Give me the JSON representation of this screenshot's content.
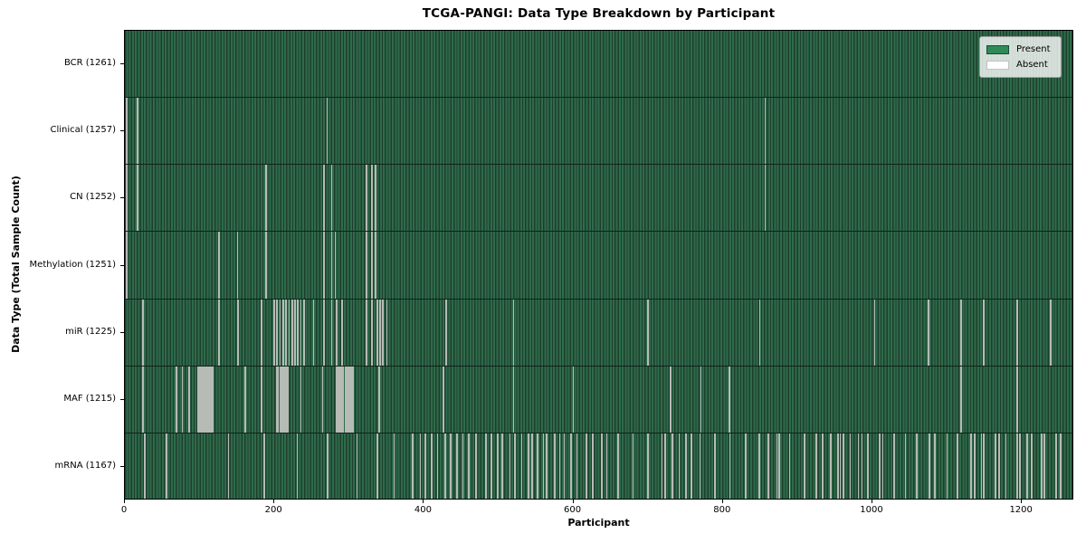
{
  "chart_data": {
    "type": "heatmap",
    "title": "TCGA-PANGI: Data Type Breakdown by Participant",
    "xlabel": "Participant",
    "ylabel": "Data Type (Total Sample Count)",
    "x_ticks": [
      0,
      200,
      400,
      600,
      800,
      1000,
      1200
    ],
    "x_max": 1270,
    "total_participants": 1261,
    "grid": false,
    "legend": {
      "position": "upper right",
      "entries": [
        {
          "label": "Present",
          "color": "#2e8b57"
        },
        {
          "label": "Absent",
          "color": "#ffffff"
        }
      ]
    },
    "colors": {
      "present_fill": "#2e8b57",
      "present_stripe_dark": "#1d3f2c",
      "present_stripe_light": "#2f6b4b",
      "absent_stripe_render": "#b6bbb6",
      "plot_border": "#000000"
    },
    "rows": [
      {
        "name": "BCR",
        "label": "BCR (1261)",
        "present_count": 1261,
        "absent_participants": []
      },
      {
        "name": "Clinical",
        "label": "Clinical (1257)",
        "present_count": 1257,
        "absent_participants": [
          1,
          16,
          270,
          857
        ]
      },
      {
        "name": "CN",
        "label": "CN (1252)",
        "present_count": 1252,
        "absent_participants": [
          1,
          16,
          188,
          266,
          276,
          323,
          330,
          335,
          857
        ]
      },
      {
        "name": "Methylation",
        "label": "Methylation (1251)",
        "present_count": 1251,
        "absent_participants": [
          1,
          125,
          150,
          188,
          266,
          276,
          281,
          323,
          330,
          335
        ]
      },
      {
        "name": "miR",
        "label": "miR (1225)",
        "present_count": 1225,
        "absent_participants": [
          23,
          125,
          151,
          182,
          199,
          203,
          207,
          211,
          215,
          219,
          223,
          227,
          231,
          235,
          239,
          252,
          266,
          276,
          283,
          290,
          323,
          330,
          337,
          341,
          345,
          350,
          430,
          520,
          700,
          850,
          1004,
          1076,
          1120,
          1150,
          1195,
          1240
        ]
      },
      {
        "name": "MAF",
        "label": "MAF (1215)",
        "present_count": 1215,
        "absent_participants": [
          23,
          68,
          76,
          85,
          97,
          99,
          101,
          103,
          105,
          107,
          109,
          111,
          113,
          115,
          117,
          160,
          182,
          202,
          204,
          207,
          209,
          211,
          214,
          216,
          218,
          235,
          264,
          283,
          285,
          288,
          290,
          292,
          295,
          297,
          300,
          302,
          305,
          340,
          426,
          520,
          600,
          730,
          771,
          809,
          1120,
          1195
        ]
      },
      {
        "name": "mRNA",
        "label": "mRNA (1167)",
        "present_count": 1167,
        "absent_participants": [
          26,
          55,
          138,
          186,
          230,
          271,
          310,
          337,
          360,
          385,
          395,
          402,
          410,
          418,
          428,
          436,
          444,
          452,
          460,
          470,
          483,
          490,
          499,
          505,
          515,
          522,
          531,
          540,
          545,
          552,
          560,
          564,
          575,
          582,
          588,
          597,
          605,
          618,
          626,
          638,
          645,
          660,
          680,
          700,
          719,
          723,
          733,
          742,
          751,
          758,
          770,
          790,
          810,
          831,
          849,
          861,
          873,
          876,
          890,
          910,
          926,
          934,
          945,
          955,
          958,
          962,
          971,
          982,
          987,
          995,
          1011,
          1015,
          1030,
          1045,
          1060,
          1077,
          1085,
          1101,
          1115,
          1133,
          1138,
          1147,
          1150,
          1166,
          1171,
          1180,
          1195,
          1199,
          1208,
          1214,
          1228,
          1231,
          1247,
          1253
        ]
      }
    ]
  }
}
